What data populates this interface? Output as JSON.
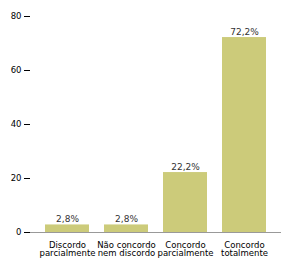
{
  "chart_data": {
    "type": "bar",
    "categories": [
      "Discordo\nparcialmente",
      "Não concordo\nnem discordo",
      "Concordo\nparcialmente",
      "Concordo\ntotalmente"
    ],
    "values": [
      2.8,
      2.8,
      22.2,
      72.2
    ],
    "value_labels": [
      "2,8%",
      "2,8%",
      "22,2%",
      "72,2%"
    ],
    "color": "#cccb7a",
    "ylim": [
      0,
      80
    ],
    "yticks": [
      0,
      20,
      40,
      60,
      80
    ],
    "grid": false,
    "data_labels": true
  }
}
